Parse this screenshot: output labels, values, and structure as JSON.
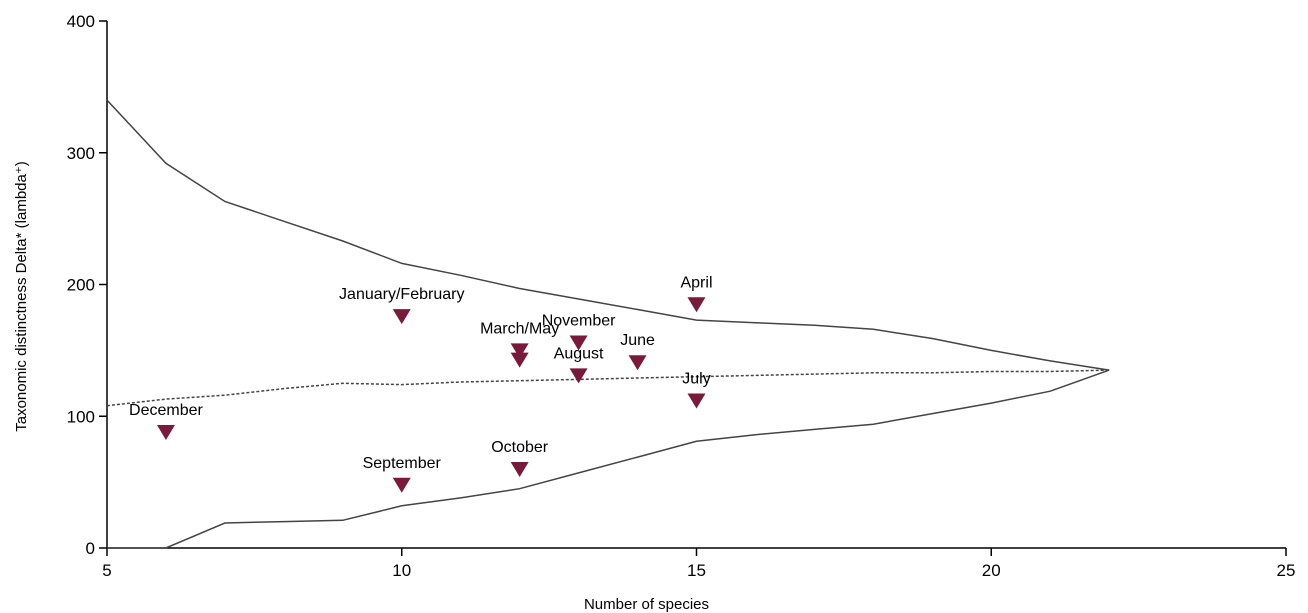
{
  "chart_data": {
    "type": "scatter",
    "title": "",
    "xlabel": "Number of species",
    "ylabel": "Taxonomic distinctness Delta* (lambda⁺)",
    "xlim": [
      5,
      25
    ],
    "ylim": [
      0,
      400
    ],
    "xticks": [
      5,
      10,
      15,
      20,
      25
    ],
    "yticks": [
      0,
      100,
      200,
      300,
      400
    ],
    "grid": false,
    "marker_color": "#7a1a3a",
    "line_color": "#444444",
    "points": [
      {
        "label": "December",
        "x": 6,
        "y": 88
      },
      {
        "label": "January/February",
        "x": 10,
        "y": 176
      },
      {
        "label": "September",
        "x": 10,
        "y": 48
      },
      {
        "label": "March/May",
        "x": 12,
        "y": 150
      },
      {
        "label": "",
        "x": 12,
        "y": 143
      },
      {
        "label": "October",
        "x": 12,
        "y": 60
      },
      {
        "label": "November",
        "x": 13,
        "y": 156
      },
      {
        "label": "August",
        "x": 13,
        "y": 131
      },
      {
        "label": "June",
        "x": 14,
        "y": 141
      },
      {
        "label": "April",
        "x": 15,
        "y": 185
      },
      {
        "label": "July",
        "x": 15,
        "y": 112
      }
    ],
    "lines": [
      {
        "style": "solid",
        "x": [
          5,
          6,
          7,
          8,
          9,
          10,
          11,
          12,
          13,
          14,
          15,
          16,
          17,
          18,
          19,
          20,
          21,
          22
        ],
        "y": [
          340,
          292,
          263,
          248,
          233,
          216,
          207,
          197,
          189,
          181,
          173,
          171,
          169,
          166,
          159,
          150,
          142,
          135
        ]
      },
      {
        "style": "dashed",
        "x": [
          5,
          6,
          7,
          8,
          9,
          10,
          11,
          12,
          13,
          14,
          15,
          16,
          17,
          18,
          19,
          20,
          21,
          22
        ],
        "y": [
          108,
          113,
          116,
          121,
          125,
          124,
          126,
          127,
          128,
          129,
          130,
          131,
          132,
          133,
          133,
          134,
          134,
          135
        ]
      },
      {
        "style": "solid",
        "x": [
          5,
          6,
          7,
          8,
          9,
          10,
          11,
          12,
          13,
          14,
          15,
          16,
          17,
          18,
          19,
          20,
          21,
          22
        ],
        "y": [
          0,
          0,
          19,
          20,
          21,
          32,
          38,
          45,
          57,
          69,
          81,
          86,
          90,
          94,
          102,
          110,
          119,
          135
        ]
      }
    ]
  }
}
